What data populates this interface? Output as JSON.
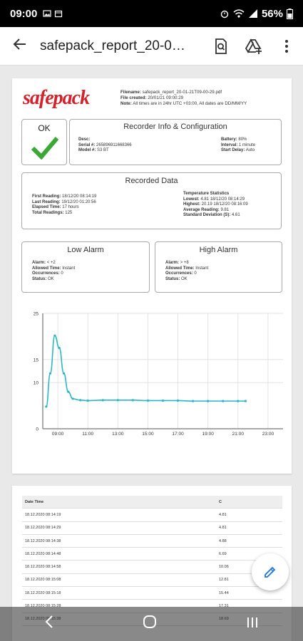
{
  "status_bar": {
    "time": "09:00",
    "battery": "56%"
  },
  "app_bar": {
    "title": "safepack_report_20-0…"
  },
  "report": {
    "logo": "safepack",
    "filename_label": "Filename:",
    "filename": "safepack_report_20-01-21T09-00-29.pdf",
    "created_label": "File created:",
    "created": "20/01/21 09:00:29",
    "note_label": "Note:",
    "note": "All times are in 24hr UTC +03:00, All dates are DD/MM/YY",
    "status": "OK",
    "recorder": {
      "title": "Recorder Info & Configuration",
      "desc_label": "Desc:",
      "desc": "",
      "serial_label": "Serial #:",
      "serial": "265896911668366",
      "model_label": "Model #:",
      "model": "S3 BT",
      "battery_label": "Battery:",
      "battery": "80%",
      "interval_label": "Interval:",
      "interval": "1 minute",
      "start_label": "Start Delay:",
      "start": "Auto"
    },
    "recorded": {
      "title": "Recorded Data",
      "first_label": "First Reading:",
      "first": "18/12/20 08:14:19",
      "last_label": "Last Reading:",
      "last": "19/12/20 01:20:56",
      "elapsed_label": "Elapsed Time:",
      "elapsed": "17 hours",
      "total_label": "Total Readings:",
      "total": "125",
      "stats_title": "Temperature Statistics",
      "lowest_label": "Lowest:",
      "lowest": "4.81 18/12/20 08:14:29",
      "highest_label": "Highest:",
      "highest": "20.19 18/12/20 08:16:09",
      "avg_label": "Average Reading:",
      "avg": "9.81",
      "std_label": "Standard Deviation (S):",
      "std": "4.61"
    },
    "low_alarm": {
      "title": "Low Alarm",
      "alarm_label": "Alarm:",
      "alarm": "< +2",
      "allowed_label": "Allowed Time:",
      "allowed": "Instant",
      "occ_label": "Occurrences:",
      "occ": "0",
      "status_label": "Status:",
      "status": "OK"
    },
    "high_alarm": {
      "title": "High Alarm",
      "alarm_label": "Alarm:",
      "alarm": "> +8",
      "allowed_label": "Allowed Time:",
      "allowed": "Instant",
      "occ_label": "Occurrences:",
      "occ": "0",
      "status_label": "Status:",
      "status": "OK"
    }
  },
  "chart_data": {
    "type": "line",
    "x_ticks": [
      "09:00",
      "11:00",
      "13:00",
      "15:00",
      "17:00",
      "19:00",
      "21:00",
      "23:00"
    ],
    "y_ticks": [
      0,
      10,
      15,
      25
    ],
    "ylim": [
      0,
      25
    ],
    "xlim_hours": [
      8,
      24
    ],
    "grid": true,
    "color": "#29b6c9",
    "x_hours": [
      8.23,
      8.5,
      8.8,
      9.1,
      9.4,
      9.7,
      10.0,
      10.5,
      11.0,
      12.0,
      13.0,
      14.0,
      15.0,
      16.0,
      17.0,
      18.0,
      19.0,
      20.0,
      21.0,
      21.5
    ],
    "values": [
      4.81,
      12.0,
      20.19,
      17.5,
      12.0,
      8.0,
      6.5,
      6.2,
      6.1,
      6.2,
      6.2,
      6.2,
      6.1,
      6.1,
      6.1,
      6.0,
      6.0,
      6.0,
      6.0,
      6.0
    ]
  },
  "table": {
    "headers": [
      "Date Time",
      "C"
    ],
    "rows": [
      [
        "18.12.2020 08:14:19",
        "4.81"
      ],
      [
        "18.12.2020 08:14:29",
        "4.81"
      ],
      [
        "18.12.2020 08:14:38",
        "4.88"
      ],
      [
        "18.12.2020 08:14:48",
        "6.69"
      ],
      [
        "18.12.2020 08:14:58",
        "10.06"
      ],
      [
        "18.12.2020 08:15:08",
        "12.81"
      ],
      [
        "18.12.2020 08:15:18",
        "15.44"
      ],
      [
        "18.12.2020 08:15:28",
        "17.31"
      ],
      [
        "18.12.2020 08:15:38",
        "18.69"
      ]
    ]
  }
}
